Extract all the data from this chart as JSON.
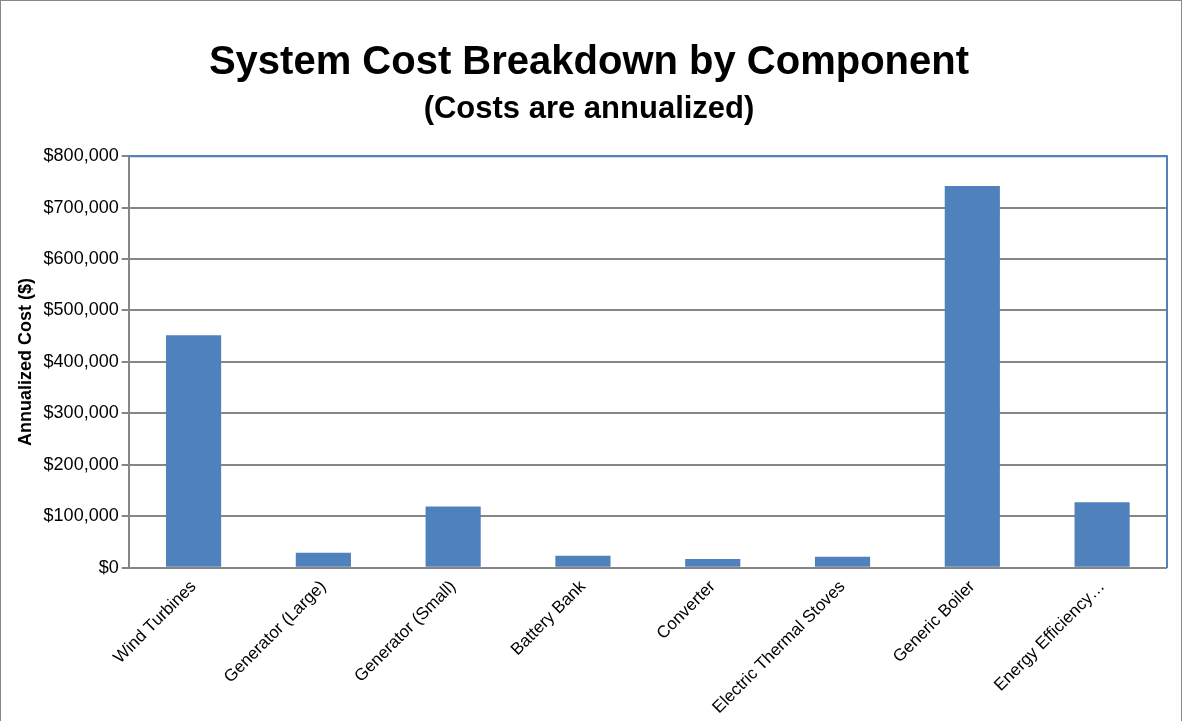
{
  "chart_data": {
    "type": "bar",
    "title": "System Cost Breakdown by Component",
    "subtitle": "(Costs are annualized)",
    "ylabel": "Annualized Cost ($)",
    "categories": [
      "Wind Turbines",
      "Generator (Large)",
      "Generator (Small)",
      "Battery Bank",
      "Converter",
      "Electric Thermal Stoves",
      "Generic Boiler",
      "Energy Efficiency…"
    ],
    "values": [
      452000,
      29000,
      119000,
      23000,
      17000,
      21000,
      742000,
      127000
    ],
    "color": "#4f81bd",
    "ylim": [
      0,
      800000
    ],
    "yticks": [
      {
        "value": 0,
        "label": "$0"
      },
      {
        "value": 100000,
        "label": "$100,000"
      },
      {
        "value": 200000,
        "label": "$200,000"
      },
      {
        "value": 300000,
        "label": "$300,000"
      },
      {
        "value": 400000,
        "label": "$400,000"
      },
      {
        "value": 500000,
        "label": "$500,000"
      },
      {
        "value": 600000,
        "label": "$600,000"
      },
      {
        "value": 700000,
        "label": "$700,000"
      },
      {
        "value": 800000,
        "label": "$800,000"
      }
    ],
    "grid": "y",
    "legend": false
  }
}
